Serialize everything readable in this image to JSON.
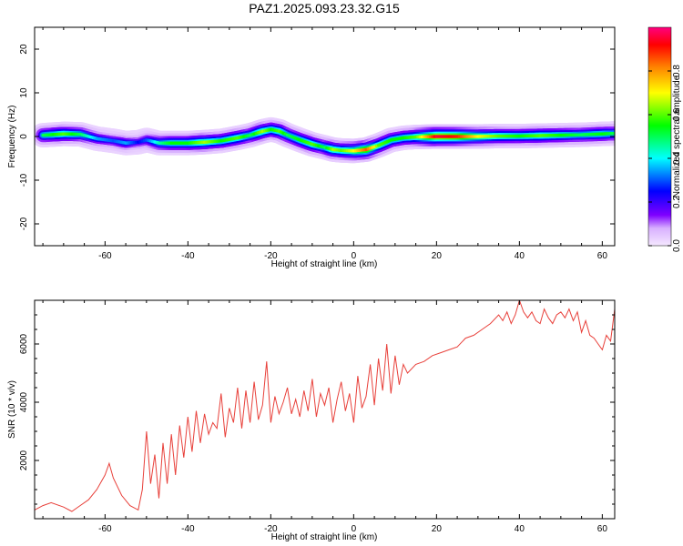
{
  "title": "PAZ1.2025.093.23.32.G15",
  "chart_data": [
    {
      "type": "heatmap",
      "xlabel": "Height of straight line (km)",
      "ylabel": "Frequency (Hz)",
      "xlim": [
        -77,
        63
      ],
      "ylim": [
        -25,
        25
      ],
      "xticks": [
        -60,
        -40,
        -20,
        0,
        20,
        40,
        60
      ],
      "yticks": [
        -20,
        -10,
        0,
        10,
        20
      ],
      "ridge": {
        "x": [
          -75,
          -70,
          -66,
          -62,
          -58,
          -55,
          -52,
          -50,
          -47,
          -44,
          -40,
          -36,
          -32,
          -28,
          -25,
          -22,
          -20,
          -18,
          -16,
          -13,
          -10,
          -7,
          -5,
          -3,
          0,
          3,
          6,
          9,
          12,
          15,
          20,
          25,
          30,
          35,
          40,
          45,
          50,
          55,
          60,
          63
        ],
        "y": [
          0.3,
          0.6,
          0.5,
          -0.5,
          -1.0,
          -1.5,
          -1.3,
          -0.8,
          -1.5,
          -1.5,
          -1.5,
          -1.3,
          -1.0,
          -0.3,
          0.3,
          1.2,
          1.6,
          1.2,
          0.3,
          -0.8,
          -1.8,
          -2.5,
          -3.0,
          -3.2,
          -3.3,
          -3.0,
          -2.0,
          -0.8,
          -0.3,
          -0.1,
          0.0,
          0.0,
          0.0,
          0.1,
          0.1,
          0.2,
          0.3,
          0.4,
          0.6,
          0.7
        ],
        "amplitude": [
          0.5,
          0.6,
          0.5,
          0.35,
          0.3,
          0.35,
          0.25,
          0.3,
          0.45,
          0.55,
          0.55,
          0.65,
          0.55,
          0.6,
          0.5,
          0.65,
          0.55,
          0.6,
          0.5,
          0.55,
          0.6,
          0.5,
          0.65,
          0.6,
          0.7,
          0.85,
          0.6,
          0.55,
          0.55,
          0.6,
          0.95,
          0.9,
          0.7,
          0.6,
          0.55,
          0.6,
          0.55,
          0.5,
          0.55,
          0.5
        ]
      },
      "colorbar": {
        "label": "Normalized spectral amplitude",
        "range": [
          0,
          1
        ],
        "ticks": [
          0.0,
          0.2,
          0.4,
          0.6,
          0.8
        ],
        "tick_labels": [
          "0.0",
          "0.2",
          "0.4",
          "0.6",
          "0.8"
        ],
        "colormap": [
          "#f5e8ff",
          "#7f00ff",
          "#0000ff",
          "#00ffff",
          "#00ff00",
          "#ffff00",
          "#ff8000",
          "#ff0000",
          "#ff0080"
        ]
      }
    },
    {
      "type": "line",
      "xlabel": "Height of straight line (km)",
      "ylabel": "SNR (10 * v/v)",
      "xlim": [
        -77,
        63
      ],
      "ylim": [
        0,
        7500
      ],
      "xticks": [
        -60,
        -40,
        -20,
        0,
        20,
        40,
        60
      ],
      "yticks": [
        2000,
        4000,
        6000
      ],
      "color": "#e8403a",
      "series": [
        {
          "x": [
            -77,
            -75,
            -73,
            -70,
            -68,
            -66,
            -64,
            -62,
            -60,
            -59,
            -58,
            -56,
            -54,
            -52,
            -51,
            -50,
            -49,
            -48,
            -47,
            -46,
            -45,
            -44,
            -43,
            -42,
            -41,
            -40,
            -39,
            -38,
            -37,
            -36,
            -35,
            -34,
            -33,
            -32,
            -31,
            -30,
            -29,
            -28,
            -27,
            -26,
            -25,
            -24,
            -23,
            -22,
            -21,
            -20,
            -19,
            -18,
            -17,
            -16,
            -15,
            -14,
            -13,
            -12,
            -11,
            -10,
            -9,
            -8,
            -7,
            -6,
            -5,
            -4,
            -3,
            -2,
            -1,
            0,
            1,
            2,
            3,
            4,
            5,
            6,
            7,
            8,
            9,
            10,
            11,
            12,
            13,
            15,
            17,
            19,
            21,
            23,
            25,
            27,
            29,
            31,
            33,
            35,
            36,
            37,
            38,
            39,
            40,
            41,
            42,
            43,
            44,
            45,
            46,
            47,
            48,
            49,
            50,
            51,
            52,
            53,
            54,
            55,
            56,
            57,
            58,
            59,
            60,
            61,
            62,
            63
          ],
          "y": [
            300,
            450,
            550,
            400,
            250,
            450,
            650,
            1000,
            1500,
            1900,
            1400,
            800,
            450,
            300,
            1000,
            3000,
            1200,
            2200,
            700,
            2600,
            1200,
            2900,
            1500,
            3200,
            2100,
            3500,
            2300,
            3700,
            2600,
            3600,
            2900,
            3300,
            3100,
            4300,
            2800,
            3800,
            3300,
            4500,
            3100,
            4400,
            3300,
            4700,
            3400,
            3900,
            5400,
            3300,
            4200,
            3600,
            4000,
            4500,
            3600,
            4100,
            3500,
            4400,
            3700,
            4800,
            3500,
            4300,
            3900,
            4500,
            3300,
            4100,
            4700,
            3700,
            4300,
            3300,
            4900,
            3800,
            4200,
            5300,
            3900,
            5500,
            4400,
            6000,
            4300,
            5600,
            4600,
            5300,
            5000,
            5300,
            5400,
            5600,
            5700,
            5800,
            5900,
            6200,
            6300,
            6500,
            6700,
            7000,
            6800,
            7100,
            6700,
            7000,
            7500,
            7100,
            6900,
            7100,
            6800,
            6700,
            7200,
            6900,
            6700,
            7000,
            7100,
            6900,
            7200,
            6800,
            7100,
            6400,
            6800,
            6300,
            6200,
            6000,
            5800,
            6300,
            6100,
            7200
          ]
        }
      ]
    }
  ]
}
